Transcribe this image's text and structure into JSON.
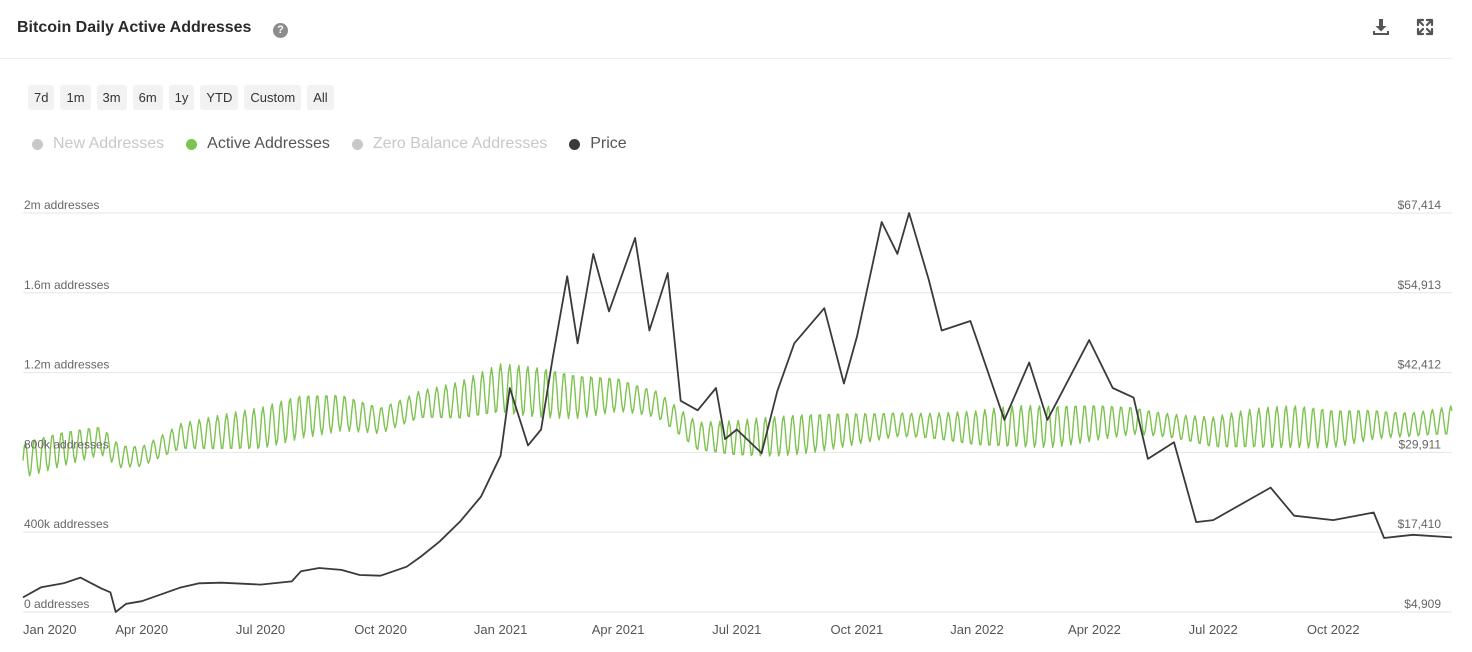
{
  "header": {
    "title": "Bitcoin Daily Active Addresses",
    "help_icon": "question-circle-icon",
    "download_icon": "download-icon",
    "expand_icon": "expand-icon"
  },
  "ranges": [
    "7d",
    "1m",
    "3m",
    "6m",
    "1y",
    "YTD",
    "Custom",
    "All"
  ],
  "legend": [
    {
      "label": "New Addresses",
      "color": "#c8c8c8",
      "active": false
    },
    {
      "label": "Active Addresses",
      "color": "#7dc34f",
      "active": true
    },
    {
      "label": "Zero Balance Addresses",
      "color": "#c8c8c8",
      "active": false
    },
    {
      "label": "Price",
      "color": "#3a3a3a",
      "active": true
    }
  ],
  "chart_data": {
    "type": "line",
    "left_axis": {
      "ticks": [
        0,
        400000,
        800000,
        1200000,
        1600000,
        2000000
      ],
      "tick_labels": [
        "0 addresses",
        "400k addresses",
        "800k addresses",
        "1.2m addresses",
        "1.6m addresses",
        "2m addresses"
      ]
    },
    "right_axis": {
      "ticks": [
        4909,
        17410,
        29911,
        42412,
        54913,
        67414
      ],
      "tick_labels": [
        "$4,909",
        "$17,410",
        "$29,911",
        "$42,412",
        "$54,913",
        "$67,414"
      ]
    },
    "x_ticks": [
      {
        "date": "2020-01-01",
        "label": "Jan 2020"
      },
      {
        "date": "2020-04-01",
        "label": "Apr 2020"
      },
      {
        "date": "2020-07-01",
        "label": "Jul 2020"
      },
      {
        "date": "2020-10-01",
        "label": "Oct 2020"
      },
      {
        "date": "2021-01-01",
        "label": "Jan 2021"
      },
      {
        "date": "2021-04-01",
        "label": "Apr 2021"
      },
      {
        "date": "2021-07-01",
        "label": "Jul 2021"
      },
      {
        "date": "2021-10-01",
        "label": "Oct 2021"
      },
      {
        "date": "2022-01-01",
        "label": "Jan 2022"
      },
      {
        "date": "2022-04-01",
        "label": "Apr 2022"
      },
      {
        "date": "2022-07-01",
        "label": "Jul 2022"
      },
      {
        "date": "2022-10-01",
        "label": "Oct 2022"
      }
    ],
    "x_range": [
      "2020-01-01",
      "2022-12-31"
    ],
    "series": [
      {
        "name": "Active Addresses",
        "axis": "left",
        "color": "#7dc34f",
        "points": [
          [
            "2020-01-01",
            760000
          ],
          [
            "2020-02-01",
            820000
          ],
          [
            "2020-03-01",
            860000
          ],
          [
            "2020-03-15",
            780000
          ],
          [
            "2020-04-01",
            780000
          ],
          [
            "2020-05-01",
            880000
          ],
          [
            "2020-06-01",
            900000
          ],
          [
            "2020-07-01",
            920000
          ],
          [
            "2020-08-01",
            980000
          ],
          [
            "2020-09-01",
            1000000
          ],
          [
            "2020-10-01",
            960000
          ],
          [
            "2020-11-01",
            1040000
          ],
          [
            "2020-12-01",
            1060000
          ],
          [
            "2021-01-01",
            1120000
          ],
          [
            "2021-02-01",
            1100000
          ],
          [
            "2021-03-01",
            1080000
          ],
          [
            "2021-04-01",
            1090000
          ],
          [
            "2021-05-01",
            1040000
          ],
          [
            "2021-06-01",
            880000
          ],
          [
            "2021-07-01",
            870000
          ],
          [
            "2021-08-01",
            880000
          ],
          [
            "2021-09-01",
            900000
          ],
          [
            "2021-10-01",
            920000
          ],
          [
            "2021-11-01",
            940000
          ],
          [
            "2021-12-01",
            930000
          ],
          [
            "2022-01-01",
            920000
          ],
          [
            "2022-02-01",
            930000
          ],
          [
            "2022-03-01",
            930000
          ],
          [
            "2022-04-01",
            950000
          ],
          [
            "2022-05-01",
            960000
          ],
          [
            "2022-06-01",
            930000
          ],
          [
            "2022-07-01",
            900000
          ],
          [
            "2022-08-01",
            920000
          ],
          [
            "2022-09-01",
            930000
          ],
          [
            "2022-10-01",
            920000
          ],
          [
            "2022-11-01",
            940000
          ],
          [
            "2022-12-01",
            940000
          ],
          [
            "2022-12-31",
            960000
          ]
        ]
      },
      {
        "name": "Price",
        "axis": "right",
        "color": "#3a3a3a",
        "points": [
          [
            "2020-01-01",
            7200
          ],
          [
            "2020-01-15",
            8800
          ],
          [
            "2020-02-01",
            9400
          ],
          [
            "2020-02-14",
            10300
          ],
          [
            "2020-03-01",
            8600
          ],
          [
            "2020-03-08",
            8000
          ],
          [
            "2020-03-12",
            4909
          ],
          [
            "2020-03-20",
            6200
          ],
          [
            "2020-04-01",
            6600
          ],
          [
            "2020-04-30",
            8700
          ],
          [
            "2020-05-15",
            9400
          ],
          [
            "2020-06-01",
            9500
          ],
          [
            "2020-07-01",
            9200
          ],
          [
            "2020-07-25",
            9700
          ],
          [
            "2020-08-01",
            11300
          ],
          [
            "2020-08-15",
            11800
          ],
          [
            "2020-09-01",
            11500
          ],
          [
            "2020-09-15",
            10700
          ],
          [
            "2020-10-01",
            10600
          ],
          [
            "2020-10-21",
            12000
          ],
          [
            "2020-11-01",
            13600
          ],
          [
            "2020-11-15",
            15900
          ],
          [
            "2020-12-01",
            19100
          ],
          [
            "2020-12-17",
            23000
          ],
          [
            "2021-01-01",
            29400
          ],
          [
            "2021-01-08",
            40000
          ],
          [
            "2021-01-22",
            31000
          ],
          [
            "2021-02-01",
            33500
          ],
          [
            "2021-02-10",
            44800
          ],
          [
            "2021-02-21",
            57500
          ],
          [
            "2021-03-01",
            47000
          ],
          [
            "2021-03-13",
            61000
          ],
          [
            "2021-03-25",
            52000
          ],
          [
            "2021-04-14",
            63500
          ],
          [
            "2021-04-25",
            49000
          ],
          [
            "2021-05-09",
            58000
          ],
          [
            "2021-05-19",
            38000
          ],
          [
            "2021-06-01",
            36500
          ],
          [
            "2021-06-15",
            40000
          ],
          [
            "2021-06-22",
            32000
          ],
          [
            "2021-07-01",
            33500
          ],
          [
            "2021-07-20",
            29800
          ],
          [
            "2021-08-01",
            39500
          ],
          [
            "2021-08-14",
            47000
          ],
          [
            "2021-09-06",
            52500
          ],
          [
            "2021-09-21",
            40700
          ],
          [
            "2021-10-01",
            48000
          ],
          [
            "2021-10-20",
            66000
          ],
          [
            "2021-11-01",
            61000
          ],
          [
            "2021-11-10",
            67414
          ],
          [
            "2021-11-25",
            57000
          ],
          [
            "2021-12-05",
            49000
          ],
          [
            "2021-12-27",
            50500
          ],
          [
            "2022-01-01",
            47500
          ],
          [
            "2022-01-22",
            35000
          ],
          [
            "2022-02-10",
            44000
          ],
          [
            "2022-02-24",
            35000
          ],
          [
            "2022-03-28",
            47500
          ],
          [
            "2022-04-15",
            40000
          ],
          [
            "2022-05-01",
            38500
          ],
          [
            "2022-05-12",
            28900
          ],
          [
            "2022-06-01",
            31500
          ],
          [
            "2022-06-18",
            19000
          ],
          [
            "2022-07-01",
            19300
          ],
          [
            "2022-08-14",
            24400
          ],
          [
            "2022-09-01",
            20000
          ],
          [
            "2022-10-01",
            19300
          ],
          [
            "2022-11-01",
            20500
          ],
          [
            "2022-11-09",
            16500
          ],
          [
            "2022-12-01",
            17000
          ],
          [
            "2022-12-31",
            16600
          ]
        ]
      }
    ]
  }
}
